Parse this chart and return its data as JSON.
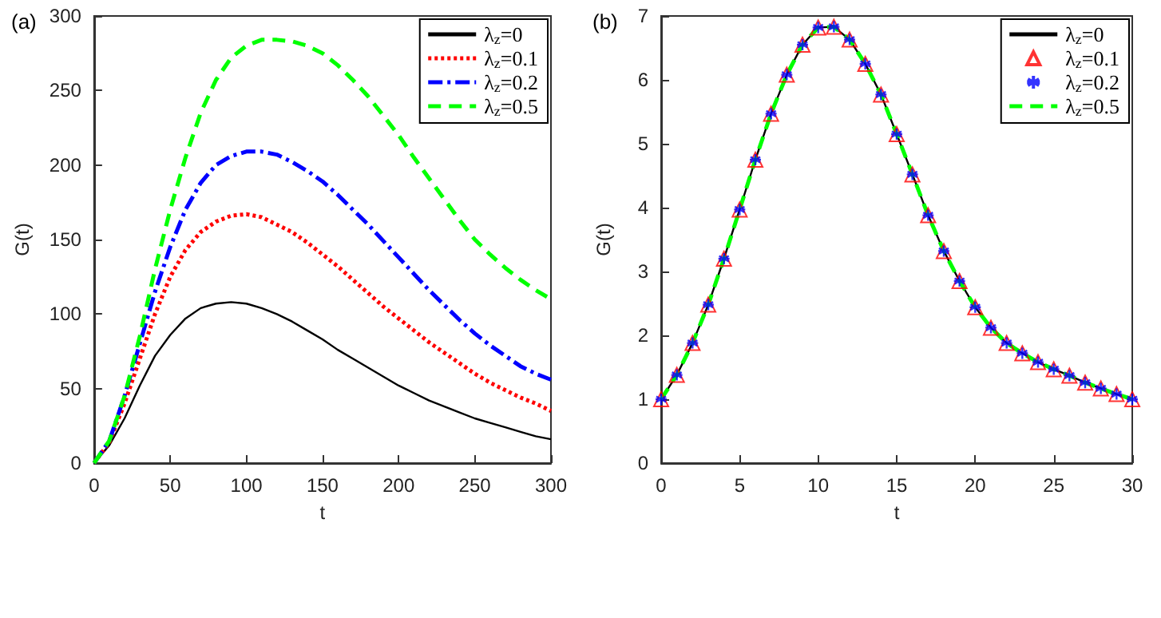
{
  "chart_data": [
    {
      "type": "line",
      "title": "(a)",
      "xlabel": "t",
      "ylabel": "G(t)",
      "xlim": [
        0,
        300
      ],
      "xticks": [
        0,
        50,
        100,
        150,
        200,
        250,
        300
      ],
      "ylim": [
        0,
        300
      ],
      "yticks": [
        0,
        50,
        100,
        150,
        200,
        250,
        300
      ],
      "legend": "top right",
      "grid": false,
      "x": [
        0,
        10,
        20,
        30,
        40,
        50,
        60,
        70,
        80,
        90,
        100,
        110,
        120,
        130,
        140,
        150,
        160,
        170,
        180,
        190,
        200,
        210,
        220,
        230,
        240,
        250,
        260,
        270,
        280,
        290,
        300
      ],
      "series": [
        {
          "name": "λ$_{z}$=0",
          "color": "#000000",
          "line_style": "solid",
          "values": [
            0,
            12,
            30,
            52,
            72,
            86,
            97,
            104,
            107,
            108,
            107,
            104,
            100,
            95,
            89,
            83,
            76,
            70,
            64,
            58,
            52,
            47,
            42,
            38,
            34,
            30,
            27,
            24,
            21,
            18,
            16
          ]
        },
        {
          "name": "λ$_{z}$=0.1",
          "color": "#ff0000",
          "line_style": "dotted",
          "values": [
            0,
            14,
            40,
            70,
            100,
            125,
            143,
            155,
            162,
            166,
            167,
            165,
            160,
            155,
            148,
            140,
            132,
            123,
            114,
            105,
            97,
            89,
            81,
            74,
            67,
            60,
            54,
            49,
            44,
            40,
            35
          ]
        },
        {
          "name": "λ$_{z}$=0.2",
          "color": "#0000ff",
          "line_style": "dashdot",
          "values": [
            0,
            15,
            45,
            80,
            115,
            145,
            170,
            188,
            200,
            206,
            209,
            209,
            207,
            202,
            196,
            189,
            180,
            170,
            160,
            149,
            138,
            127,
            116,
            106,
            96,
            87,
            79,
            72,
            65,
            60,
            56
          ]
        },
        {
          "name": "λ$_{z}$=0.5",
          "color": "#00ff00",
          "line_style": "dashed",
          "values": [
            0,
            15,
            45,
            85,
            130,
            170,
            205,
            235,
            257,
            272,
            280,
            284,
            284,
            283,
            280,
            275,
            267,
            257,
            246,
            233,
            220,
            205,
            191,
            177,
            163,
            150,
            140,
            131,
            123,
            116,
            110
          ]
        }
      ]
    },
    {
      "type": "line",
      "title": "(b)",
      "xlabel": "t",
      "ylabel": "G(t)",
      "xlim": [
        0,
        30
      ],
      "xticks": [
        0,
        5,
        10,
        15,
        20,
        25,
        30
      ],
      "ylim": [
        0,
        7
      ],
      "yticks": [
        0,
        1,
        2,
        3,
        4,
        5,
        6,
        7
      ],
      "legend": "top right",
      "grid": false,
      "x": [
        0,
        1,
        2,
        3,
        4,
        5,
        6,
        7,
        8,
        9,
        10,
        11,
        12,
        13,
        14,
        15,
        16,
        17,
        18,
        19,
        20,
        21,
        22,
        23,
        24,
        25,
        26,
        27,
        28,
        29,
        30
      ],
      "series": [
        {
          "name": "λ$_{z}$=0",
          "color": "#000000",
          "line_style": "solid",
          "values": [
            1.0,
            1.38,
            1.88,
            2.48,
            3.2,
            3.97,
            4.75,
            5.47,
            6.08,
            6.55,
            6.82,
            6.83,
            6.63,
            6.25,
            5.77,
            5.15,
            4.52,
            3.88,
            3.32,
            2.85,
            2.44,
            2.12,
            1.88,
            1.72,
            1.58,
            1.47,
            1.37,
            1.26,
            1.17,
            1.08,
            1.0
          ]
        },
        {
          "name": "λ$_{z}$=0.1",
          "type": "scatter",
          "color": "#ff0000",
          "marker": "triangle",
          "values": [
            1.0,
            1.38,
            1.88,
            2.48,
            3.2,
            3.97,
            4.75,
            5.47,
            6.08,
            6.55,
            6.82,
            6.83,
            6.63,
            6.25,
            5.77,
            5.15,
            4.52,
            3.88,
            3.32,
            2.85,
            2.44,
            2.12,
            1.88,
            1.72,
            1.58,
            1.47,
            1.37,
            1.26,
            1.17,
            1.08,
            1.0
          ]
        },
        {
          "name": "λ$_{z}$=0.2",
          "type": "scatter",
          "color": "#0000ff",
          "marker": "cross",
          "values": [
            1.0,
            1.38,
            1.88,
            2.48,
            3.2,
            3.97,
            4.75,
            5.47,
            6.08,
            6.55,
            6.82,
            6.83,
            6.63,
            6.25,
            5.77,
            5.15,
            4.52,
            3.88,
            3.32,
            2.85,
            2.44,
            2.12,
            1.88,
            1.72,
            1.58,
            1.47,
            1.37,
            1.26,
            1.17,
            1.08,
            1.0
          ]
        },
        {
          "name": "λ$_{z}$=0.5",
          "color": "#00ff00",
          "line_style": "dashed",
          "values": [
            1.0,
            1.38,
            1.88,
            2.48,
            3.2,
            3.97,
            4.75,
            5.47,
            6.08,
            6.55,
            6.82,
            6.83,
            6.63,
            6.25,
            5.77,
            5.15,
            4.52,
            3.88,
            3.32,
            2.85,
            2.44,
            2.12,
            1.88,
            1.72,
            1.58,
            1.47,
            1.37,
            1.26,
            1.17,
            1.08,
            1.0
          ]
        }
      ]
    }
  ]
}
